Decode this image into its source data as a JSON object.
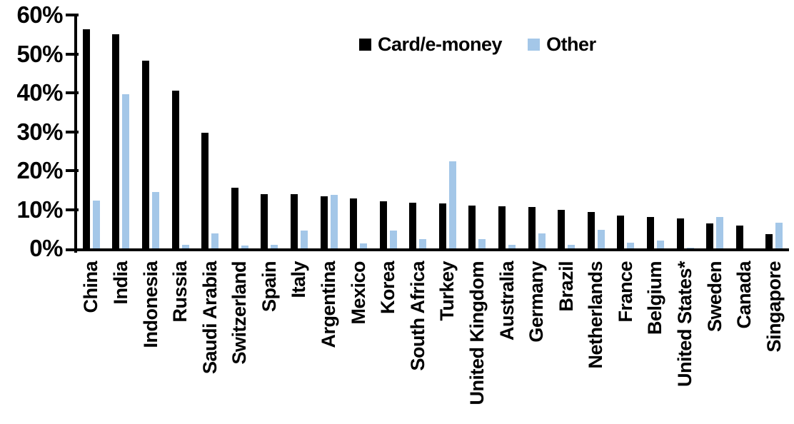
{
  "chart_data": {
    "type": "bar",
    "title": "",
    "xlabel": "",
    "ylabel": "",
    "ylim": [
      0,
      60
    ],
    "ytick_step": 10,
    "ytick_labels": [
      "0%",
      "10%",
      "20%",
      "30%",
      "40%",
      "50%",
      "60%"
    ],
    "grid": false,
    "legend_position": "top-center",
    "categories": [
      "China",
      "India",
      "Indonesia",
      "Russia",
      "Saudi Arabia",
      "Switzerland",
      "Spain",
      "Italy",
      "Argentina",
      "Mexico",
      "Korea",
      "South Africa",
      "Turkey",
      "United Kingdom",
      "Australia",
      "Germany",
      "Brazil",
      "Netherlands",
      "France",
      "Belgium",
      "United States*",
      "Sweden",
      "Canada",
      "Singapore"
    ],
    "series": [
      {
        "name": "Card/e-money",
        "color": "#000000",
        "values": [
          56.3,
          55.1,
          48.3,
          40.5,
          29.8,
          15.6,
          14.0,
          13.9,
          13.4,
          12.9,
          12.2,
          11.7,
          11.5,
          11.0,
          10.8,
          10.6,
          9.9,
          9.3,
          8.5,
          8.0,
          7.7,
          6.5,
          5.9,
          3.7
        ]
      },
      {
        "name": "Other",
        "color": "#A4C7E8",
        "values": [
          12.3,
          39.6,
          14.5,
          1.0,
          3.8,
          0.7,
          1.0,
          4.5,
          13.7,
          1.2,
          4.5,
          2.4,
          22.4,
          2.3,
          1.0,
          3.9,
          1.0,
          4.7,
          1.4,
          2.0,
          0.25,
          8.0,
          0.0,
          6.6
        ]
      }
    ]
  }
}
